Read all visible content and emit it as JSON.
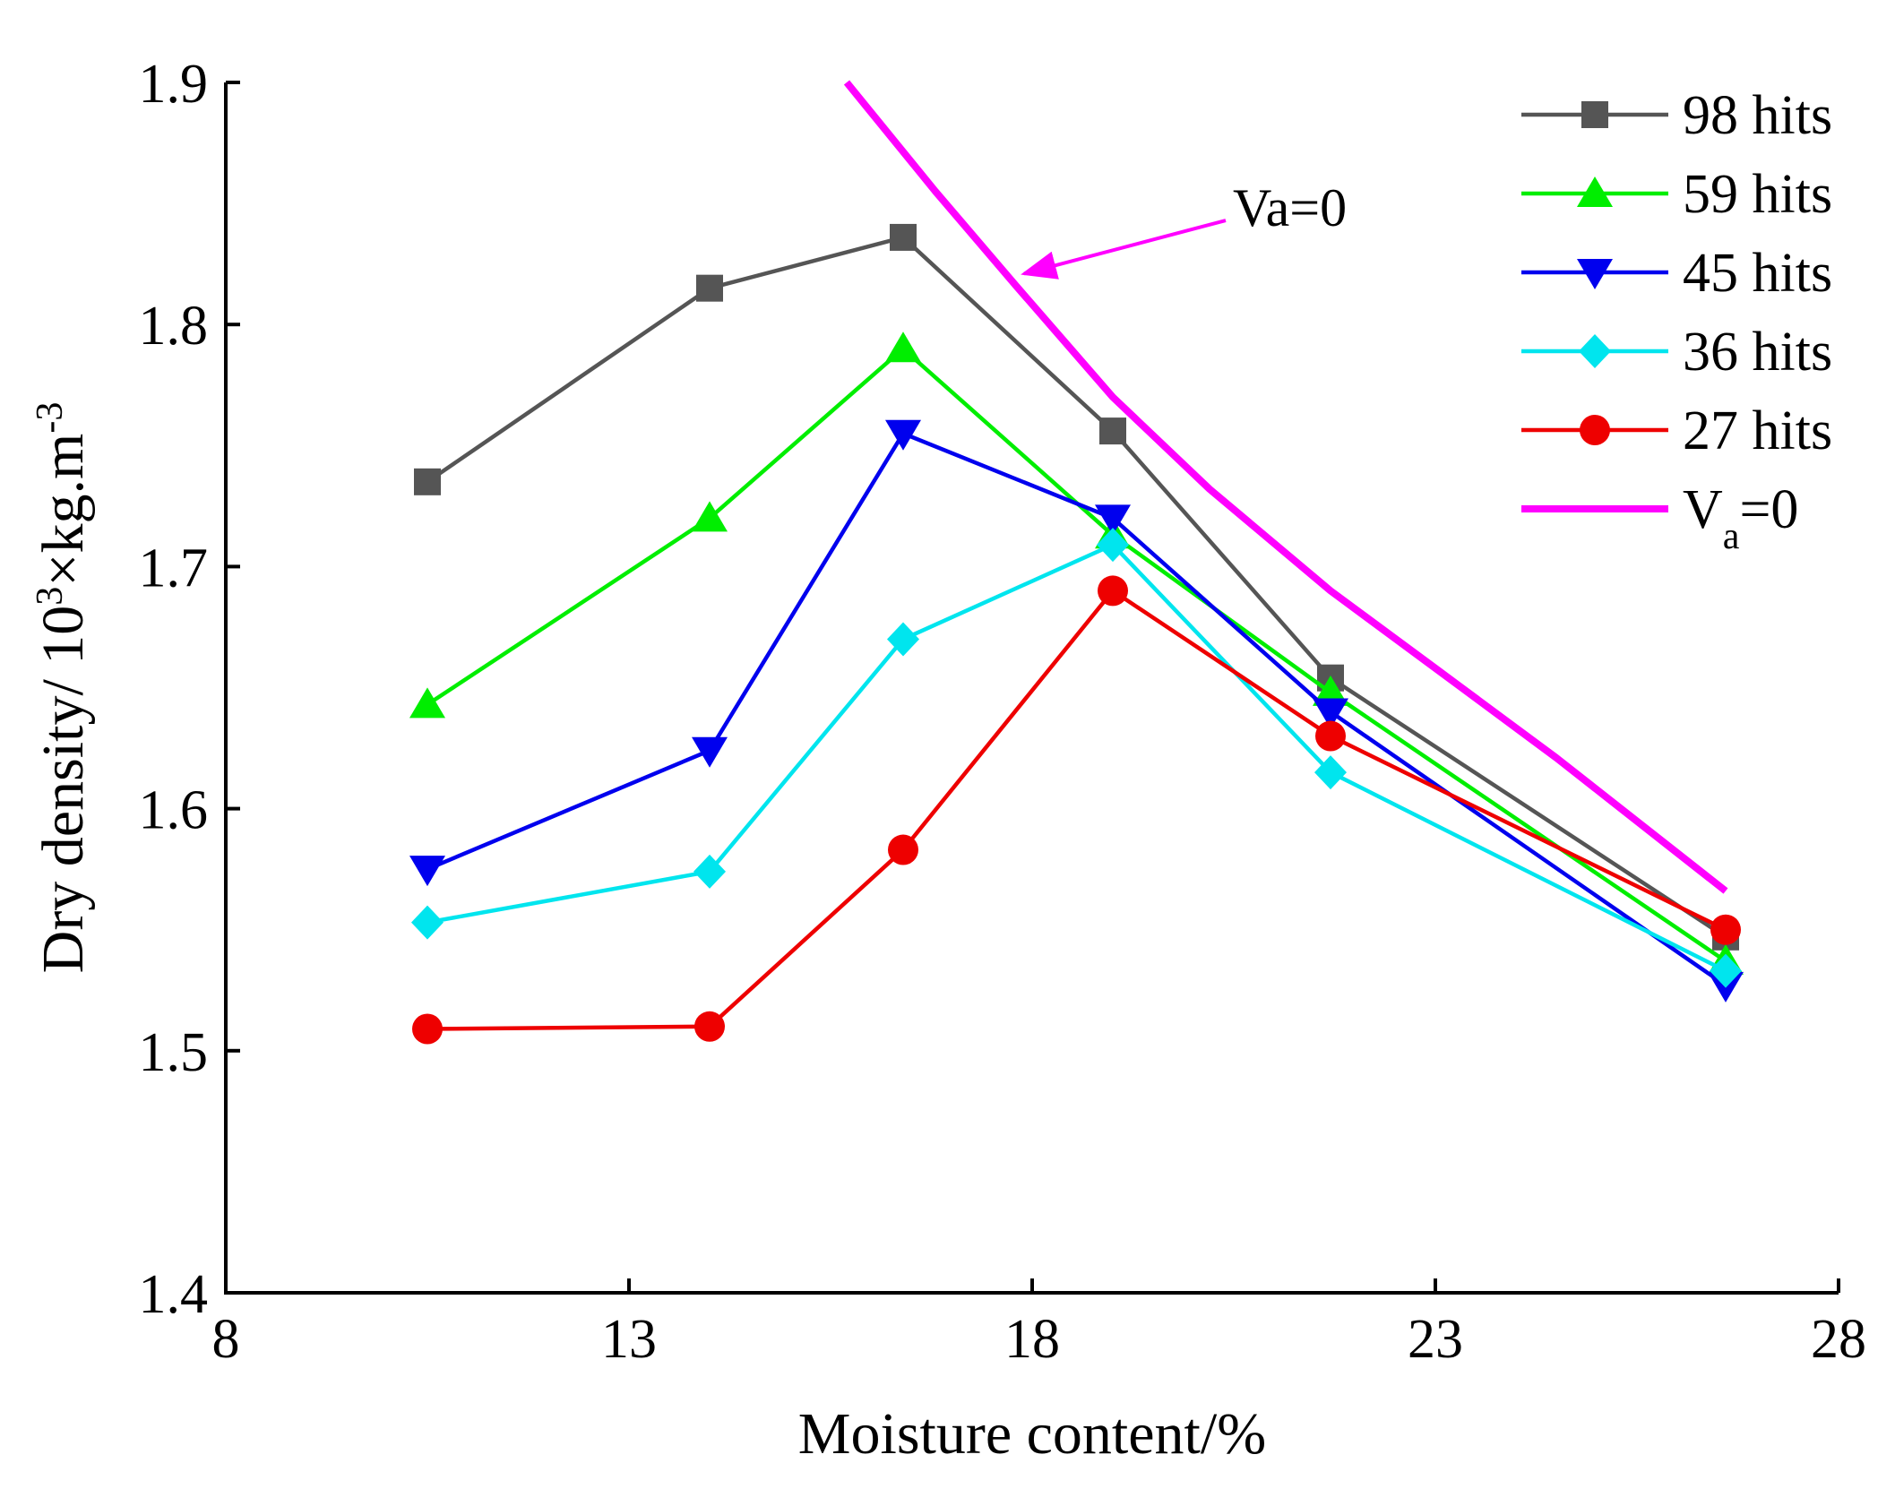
{
  "chart_data": {
    "type": "line",
    "title": "",
    "xlabel": "Moisture content/%",
    "ylabel": {
      "prefix": "Dry density/ 10",
      "sup1": "3",
      "mid": "×kg.m",
      "sup2": "-3"
    },
    "xlim": [
      8,
      28
    ],
    "ylim": [
      1.4,
      1.9
    ],
    "xticks": [
      "8",
      "13",
      "18",
      "23",
      "28"
    ],
    "yticks": [
      "1.4",
      "1.5",
      "1.6",
      "1.7",
      "1.8",
      "1.9"
    ],
    "grid": false,
    "legend_position": "top-right",
    "series": [
      {
        "name": "98 hits",
        "color": "#555555",
        "marker": "square",
        "x": [
          10.5,
          14.0,
          16.4,
          19.0,
          21.7,
          26.6
        ],
        "y": [
          1.735,
          1.815,
          1.836,
          1.756,
          1.654,
          1.547
        ]
      },
      {
        "name": "59 hits",
        "color": "#00ee00",
        "marker": "triangle-up",
        "x": [
          10.5,
          14.0,
          16.4,
          19.0,
          21.7,
          26.6
        ],
        "y": [
          1.643,
          1.72,
          1.79,
          1.713,
          1.648,
          1.537
        ]
      },
      {
        "name": "45 hits",
        "color": "#0000ee",
        "marker": "triangle-down",
        "x": [
          10.5,
          14.0,
          16.4,
          19.0,
          21.7,
          26.6
        ],
        "y": [
          1.575,
          1.624,
          1.755,
          1.72,
          1.64,
          1.527
        ]
      },
      {
        "name": "36 hits",
        "color": "#00e5ee",
        "marker": "diamond",
        "x": [
          10.5,
          14.0,
          16.4,
          19.0,
          21.7,
          26.6
        ],
        "y": [
          1.553,
          1.574,
          1.67,
          1.709,
          1.615,
          1.533
        ]
      },
      {
        "name": "27 hits",
        "color": "#ee0000",
        "marker": "circle",
        "x": [
          10.5,
          14.0,
          16.4,
          19.0,
          21.7,
          26.6
        ],
        "y": [
          1.509,
          1.51,
          1.583,
          1.69,
          1.63,
          1.55
        ]
      }
    ],
    "va_curve": {
      "color": "#ff00ff",
      "legend": {
        "main": "V",
        "sub": "a",
        "rest": "=0"
      },
      "x": [
        15.7,
        16.8,
        17.8,
        19.0,
        20.2,
        21.7,
        23.0,
        24.5,
        26.6
      ],
      "y": [
        1.9,
        1.855,
        1.816,
        1.77,
        1.732,
        1.69,
        1.658,
        1.621,
        1.566
      ]
    },
    "annotation": {
      "text": "Va=0",
      "from": [
        20.4,
        1.843
      ],
      "to": [
        17.9,
        1.821
      ]
    }
  }
}
